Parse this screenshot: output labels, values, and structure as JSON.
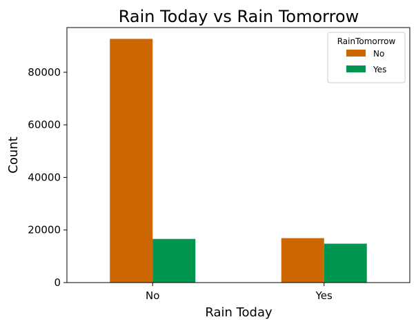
{
  "chart_data": {
    "type": "bar",
    "title": "Rain Today vs Rain Tomorrow",
    "xlabel": "Rain Today",
    "ylabel": "Count",
    "categories": [
      "No",
      "Yes"
    ],
    "series": [
      {
        "name": "No",
        "values": [
          92700,
          16900
        ],
        "color": "#CC6600"
      },
      {
        "name": "Yes",
        "values": [
          16600,
          14800
        ],
        "color": "#009650"
      }
    ],
    "ylim": [
      0,
      97000
    ],
    "yticks": [
      0,
      20000,
      40000,
      60000,
      80000
    ],
    "ytick_labels": [
      "0",
      "20000",
      "40000",
      "60000",
      "80000"
    ],
    "legend": {
      "title": "RainTomorrow",
      "placement": "top-right"
    },
    "grid": false
  }
}
